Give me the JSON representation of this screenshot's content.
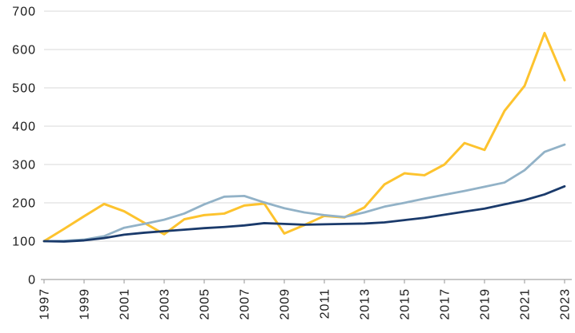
{
  "chart": {
    "title": "",
    "grid_color": "#d9d9d9",
    "axis_color": "#a6a6a6",
    "label_color": "#1a1a1a",
    "background": "#ffffff"
  },
  "chart_data": {
    "type": "line",
    "title": "",
    "xlabel": "",
    "ylabel": "",
    "x": [
      1997,
      1998,
      1999,
      2000,
      2001,
      2002,
      2003,
      2004,
      2005,
      2006,
      2007,
      2008,
      2009,
      2010,
      2011,
      2012,
      2013,
      2014,
      2015,
      2016,
      2017,
      2018,
      2019,
      2020,
      2021,
      2022,
      2023
    ],
    "x_tick_labels": [
      "1997",
      "1999",
      "2001",
      "2003",
      "2005",
      "2007",
      "2009",
      "2011",
      "2013",
      "2015",
      "2017",
      "2019",
      "2021",
      "2023"
    ],
    "x_tick_years": [
      1997,
      1999,
      2001,
      2003,
      2005,
      2007,
      2009,
      2011,
      2013,
      2015,
      2017,
      2019,
      2021,
      2023
    ],
    "y_ticks": [
      0,
      100,
      200,
      300,
      400,
      500,
      600,
      700
    ],
    "y_tick_labels": [
      "0",
      "100",
      "200",
      "300",
      "400",
      "500",
      "600",
      "700"
    ],
    "ylim": [
      0,
      700
    ],
    "xlim": [
      1997,
      2023
    ],
    "grid": true,
    "legend": "none",
    "index_base": 100,
    "series": [
      {
        "name": "gold-line",
        "color": "#fdc32e",
        "stroke_width": 3,
        "values": [
          100,
          132,
          165,
          197,
          178,
          148,
          118,
          157,
          168,
          172,
          193,
          198,
          120,
          142,
          166,
          162,
          188,
          248,
          277,
          272,
          300,
          356,
          338,
          440,
          505,
          643,
          520
        ]
      },
      {
        "name": "light-blue-line",
        "color": "#92b2c7",
        "stroke_width": 2.8,
        "values": [
          100,
          101,
          104,
          113,
          135,
          145,
          156,
          172,
          196,
          216,
          218,
          201,
          186,
          175,
          168,
          163,
          175,
          190,
          200,
          211,
          221,
          231,
          242,
          253,
          285,
          333,
          352
        ]
      },
      {
        "name": "dark-blue-line",
        "color": "#1a3a6b",
        "stroke_width": 2.8,
        "values": [
          100,
          99,
          102,
          108,
          117,
          122,
          126,
          130,
          134,
          137,
          141,
          147,
          145,
          143,
          144,
          145,
          146,
          149,
          155,
          161,
          169,
          177,
          185,
          196,
          207,
          222,
          243
        ]
      }
    ]
  }
}
